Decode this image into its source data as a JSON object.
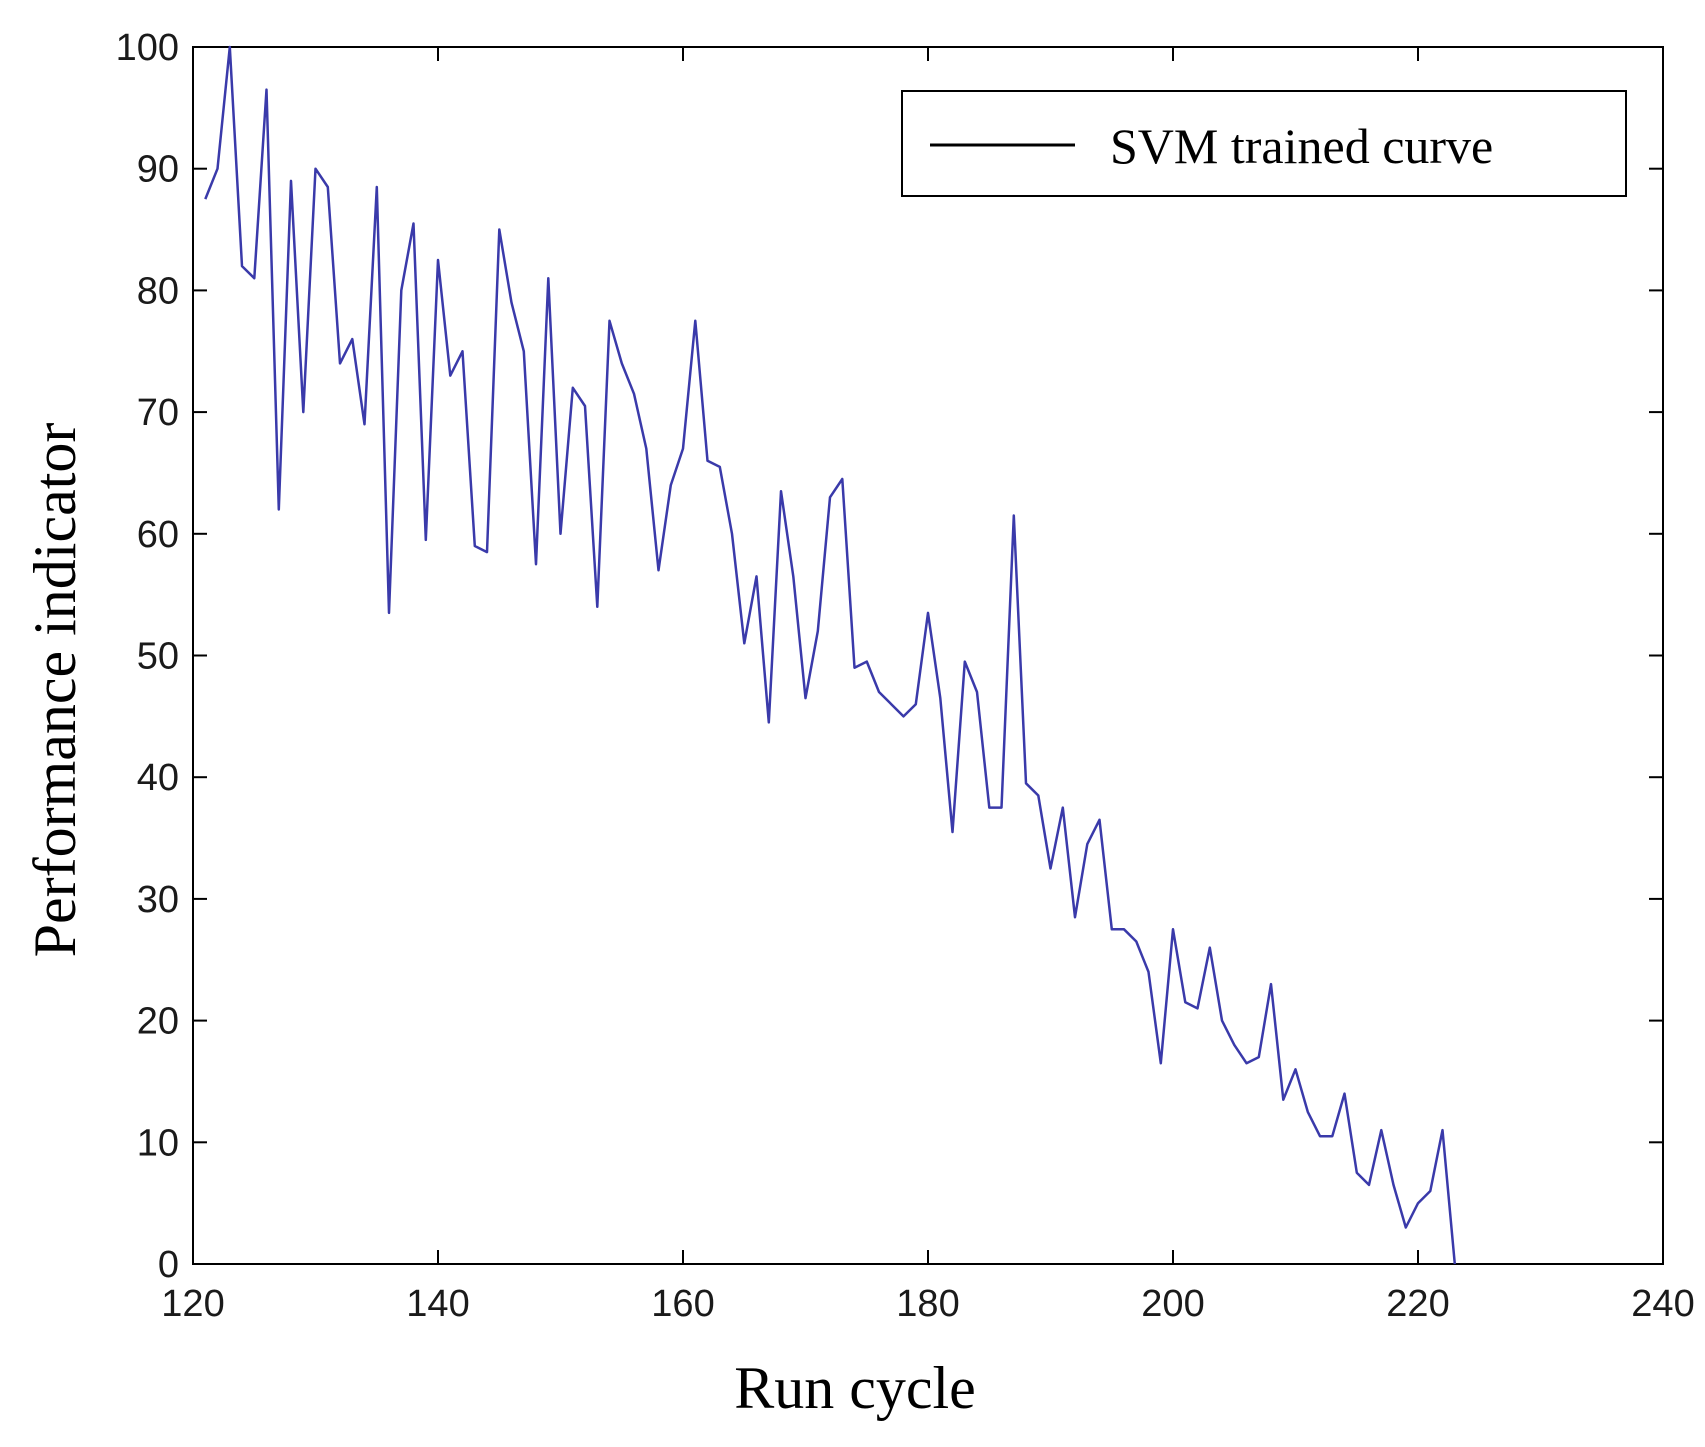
{
  "chart_data": {
    "type": "line",
    "title": "",
    "xlabel": "Run cycle",
    "ylabel": "Performance indicator",
    "xlim": [
      120,
      240
    ],
    "ylim": [
      0,
      100
    ],
    "xticks": [
      120,
      140,
      160,
      180,
      200,
      220,
      240
    ],
    "yticks": [
      0,
      10,
      20,
      30,
      40,
      50,
      60,
      70,
      80,
      90,
      100
    ],
    "xtick_labels": [
      "120",
      "140",
      "160",
      "180",
      "200",
      "220",
      "240"
    ],
    "ytick_labels": [
      "0",
      "10",
      "20",
      "30",
      "40",
      "50",
      "60",
      "70",
      "80",
      "90",
      "100"
    ],
    "grid": false,
    "legend": {
      "position": "top-right",
      "entries": [
        "SVM trained curve"
      ],
      "sample_color": "#000000"
    },
    "series": [
      {
        "name": "SVM trained curve",
        "color": "#3a3aaa",
        "x": [
          121,
          122,
          123,
          124,
          125,
          126,
          127,
          128,
          129,
          130,
          131,
          132,
          133,
          134,
          135,
          136,
          137,
          138,
          139,
          140,
          141,
          142,
          143,
          144,
          145,
          146,
          147,
          148,
          149,
          150,
          151,
          152,
          153,
          154,
          155,
          156,
          157,
          158,
          159,
          160,
          161,
          162,
          163,
          164,
          165,
          166,
          167,
          168,
          169,
          170,
          171,
          172,
          173,
          174,
          175,
          176,
          177,
          178,
          179,
          180,
          181,
          182,
          183,
          184,
          185,
          186,
          187,
          188,
          189,
          190,
          191,
          192,
          193,
          194,
          195,
          196,
          197,
          198,
          199,
          200,
          201,
          202,
          203,
          204,
          205,
          206,
          207,
          208,
          209,
          210,
          211,
          212,
          213,
          214,
          215,
          216,
          217,
          218,
          219,
          220,
          221,
          222,
          223
        ],
        "values": [
          87.5,
          90,
          100,
          82,
          81,
          96.5,
          62,
          89,
          70,
          90,
          88.5,
          74,
          76,
          69,
          88.5,
          53.5,
          80,
          85.5,
          59.5,
          82.5,
          73,
          75,
          59,
          58.5,
          85,
          79,
          75,
          57.5,
          81,
          60,
          72,
          70.5,
          54,
          77.5,
          74,
          71.5,
          67,
          57,
          64,
          67,
          77.5,
          66,
          65.5,
          60,
          51,
          56.5,
          44.5,
          63.5,
          56.5,
          46.5,
          52,
          63,
          64.5,
          49,
          49.5,
          47,
          46,
          45,
          46,
          53.5,
          46.5,
          35.5,
          49.5,
          47,
          37.5,
          37.5,
          61.5,
          39.5,
          38.5,
          32.5,
          37.5,
          28.5,
          34.5,
          36.5,
          27.5,
          27.5,
          26.5,
          24,
          16.5,
          27.5,
          21.5,
          21,
          26,
          20,
          18,
          16.5,
          17,
          23,
          13.5,
          16,
          12.5,
          10.5,
          10.5,
          14,
          7.5,
          6.5,
          11,
          6.5,
          3,
          5,
          6,
          11,
          0
        ]
      }
    ]
  }
}
